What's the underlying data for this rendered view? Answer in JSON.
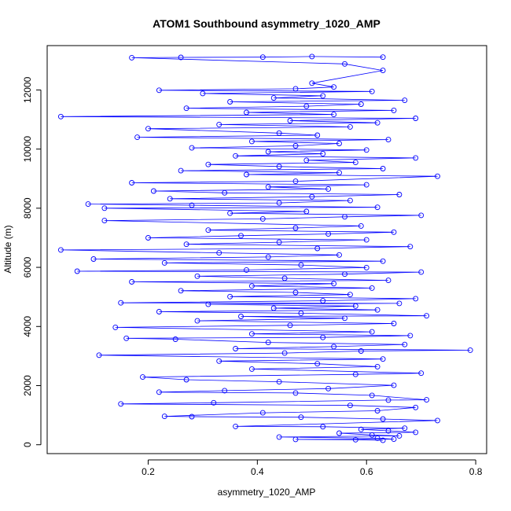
{
  "chart_data": {
    "type": "line",
    "title": "ATOM1 Southbound asymmetry_1020_AMP",
    "xlabel": "asymmetry_1020_AMP",
    "ylabel": "Altitude (m)",
    "xlim": [
      0.015,
      0.82
    ],
    "ylim": [
      -300,
      13500
    ],
    "xticks": [
      0.2,
      0.4,
      0.6,
      0.8
    ],
    "xtick_labels": [
      "0.2",
      "0.4",
      "0.6",
      "0.8"
    ],
    "yticks": [
      0,
      2000,
      4000,
      6000,
      8000,
      10000,
      12000
    ],
    "ytick_labels": [
      "0",
      "2000",
      "4000",
      "6000",
      "8000",
      "10000",
      "12000"
    ],
    "grid": false,
    "series": [
      {
        "color": "#0000ff",
        "marker": "open-circle",
        "points": [
          [
            0.63,
            150
          ],
          [
            0.58,
            170
          ],
          [
            0.47,
            180
          ],
          [
            0.65,
            190
          ],
          [
            0.62,
            220
          ],
          [
            0.44,
            260
          ],
          [
            0.66,
            300
          ],
          [
            0.61,
            330
          ],
          [
            0.55,
            390
          ],
          [
            0.69,
            420
          ],
          [
            0.64,
            470
          ],
          [
            0.59,
            520
          ],
          [
            0.67,
            560
          ],
          [
            0.52,
            610
          ],
          [
            0.36,
            620
          ],
          [
            0.73,
            820
          ],
          [
            0.63,
            870
          ],
          [
            0.48,
            930
          ],
          [
            0.28,
            950
          ],
          [
            0.23,
            960
          ],
          [
            0.41,
            1080
          ],
          [
            0.62,
            1150
          ],
          [
            0.69,
            1260
          ],
          [
            0.57,
            1330
          ],
          [
            0.15,
            1380
          ],
          [
            0.32,
            1420
          ],
          [
            0.64,
            1510
          ],
          [
            0.71,
            1520
          ],
          [
            0.61,
            1670
          ],
          [
            0.47,
            1750
          ],
          [
            0.22,
            1780
          ],
          [
            0.34,
            1830
          ],
          [
            0.53,
            1900
          ],
          [
            0.65,
            2010
          ],
          [
            0.44,
            2130
          ],
          [
            0.27,
            2200
          ],
          [
            0.19,
            2290
          ],
          [
            0.58,
            2380
          ],
          [
            0.7,
            2420
          ],
          [
            0.39,
            2560
          ],
          [
            0.62,
            2640
          ],
          [
            0.51,
            2740
          ],
          [
            0.33,
            2830
          ],
          [
            0.63,
            2900
          ],
          [
            0.11,
            3030
          ],
          [
            0.45,
            3100
          ],
          [
            0.59,
            3170
          ],
          [
            0.79,
            3200
          ],
          [
            0.36,
            3250
          ],
          [
            0.54,
            3320
          ],
          [
            0.67,
            3390
          ],
          [
            0.42,
            3460
          ],
          [
            0.25,
            3570
          ],
          [
            0.16,
            3600
          ],
          [
            0.52,
            3630
          ],
          [
            0.68,
            3690
          ],
          [
            0.39,
            3750
          ],
          [
            0.61,
            3820
          ],
          [
            0.14,
            3970
          ],
          [
            0.46,
            4040
          ],
          [
            0.65,
            4100
          ],
          [
            0.29,
            4190
          ],
          [
            0.56,
            4280
          ],
          [
            0.37,
            4340
          ],
          [
            0.71,
            4360
          ],
          [
            0.48,
            4450
          ],
          [
            0.22,
            4500
          ],
          [
            0.62,
            4560
          ],
          [
            0.43,
            4620
          ],
          [
            0.58,
            4690
          ],
          [
            0.31,
            4750
          ],
          [
            0.66,
            4780
          ],
          [
            0.15,
            4800
          ],
          [
            0.52,
            4870
          ],
          [
            0.69,
            4940
          ],
          [
            0.35,
            5010
          ],
          [
            0.57,
            5080
          ],
          [
            0.47,
            5150
          ],
          [
            0.26,
            5210
          ],
          [
            0.61,
            5300
          ],
          [
            0.39,
            5370
          ],
          [
            0.54,
            5450
          ],
          [
            0.17,
            5510
          ],
          [
            0.64,
            5560
          ],
          [
            0.45,
            5630
          ],
          [
            0.29,
            5700
          ],
          [
            0.56,
            5770
          ],
          [
            0.7,
            5840
          ],
          [
            0.07,
            5870
          ],
          [
            0.38,
            5910
          ],
          [
            0.6,
            5990
          ],
          [
            0.48,
            6080
          ],
          [
            0.23,
            6150
          ],
          [
            0.63,
            6210
          ],
          [
            0.1,
            6280
          ],
          [
            0.42,
            6350
          ],
          [
            0.55,
            6420
          ],
          [
            0.33,
            6490
          ],
          [
            0.04,
            6590
          ],
          [
            0.51,
            6640
          ],
          [
            0.68,
            6700
          ],
          [
            0.27,
            6780
          ],
          [
            0.44,
            6850
          ],
          [
            0.6,
            6930
          ],
          [
            0.2,
            7000
          ],
          [
            0.37,
            7070
          ],
          [
            0.53,
            7130
          ],
          [
            0.65,
            7190
          ],
          [
            0.31,
            7260
          ],
          [
            0.47,
            7330
          ],
          [
            0.59,
            7400
          ],
          [
            0.12,
            7580
          ],
          [
            0.41,
            7640
          ],
          [
            0.56,
            7710
          ],
          [
            0.7,
            7760
          ],
          [
            0.35,
            7830
          ],
          [
            0.49,
            7890
          ],
          [
            0.12,
            8000
          ],
          [
            0.62,
            8030
          ],
          [
            0.28,
            8100
          ],
          [
            0.09,
            8140
          ],
          [
            0.44,
            8180
          ],
          [
            0.57,
            8260
          ],
          [
            0.24,
            8320
          ],
          [
            0.5,
            8390
          ],
          [
            0.66,
            8460
          ],
          [
            0.34,
            8520
          ],
          [
            0.21,
            8580
          ],
          [
            0.53,
            8650
          ],
          [
            0.42,
            8720
          ],
          [
            0.6,
            8790
          ],
          [
            0.17,
            8860
          ],
          [
            0.47,
            8910
          ],
          [
            0.73,
            9080
          ],
          [
            0.38,
            9140
          ],
          [
            0.55,
            9200
          ],
          [
            0.26,
            9270
          ],
          [
            0.63,
            9340
          ],
          [
            0.44,
            9410
          ],
          [
            0.31,
            9480
          ],
          [
            0.58,
            9550
          ],
          [
            0.49,
            9620
          ],
          [
            0.69,
            9700
          ],
          [
            0.36,
            9770
          ],
          [
            0.52,
            9840
          ],
          [
            0.42,
            9910
          ],
          [
            0.6,
            9970
          ],
          [
            0.28,
            10040
          ],
          [
            0.47,
            10110
          ],
          [
            0.55,
            10190
          ],
          [
            0.39,
            10260
          ],
          [
            0.64,
            10320
          ],
          [
            0.18,
            10400
          ],
          [
            0.51,
            10470
          ],
          [
            0.44,
            10540
          ],
          [
            0.2,
            10690
          ],
          [
            0.57,
            10750
          ],
          [
            0.33,
            10830
          ],
          [
            0.62,
            10890
          ],
          [
            0.46,
            10960
          ],
          [
            0.69,
            11040
          ],
          [
            0.04,
            11100
          ],
          [
            0.54,
            11170
          ],
          [
            0.38,
            11240
          ],
          [
            0.65,
            11310
          ],
          [
            0.27,
            11380
          ],
          [
            0.49,
            11450
          ],
          [
            0.59,
            11520
          ],
          [
            0.35,
            11600
          ],
          [
            0.67,
            11650
          ],
          [
            0.43,
            11730
          ],
          [
            0.52,
            11800
          ],
          [
            0.3,
            11880
          ],
          [
            0.61,
            11950
          ],
          [
            0.22,
            11990
          ],
          [
            0.47,
            12040
          ],
          [
            0.54,
            12100
          ],
          [
            0.5,
            12230
          ],
          [
            0.63,
            12660
          ],
          [
            0.56,
            12880
          ],
          [
            0.17,
            13090
          ],
          [
            0.26,
            13100
          ],
          [
            0.41,
            13110
          ],
          [
            0.5,
            13130
          ],
          [
            0.63,
            13110
          ]
        ]
      }
    ]
  }
}
